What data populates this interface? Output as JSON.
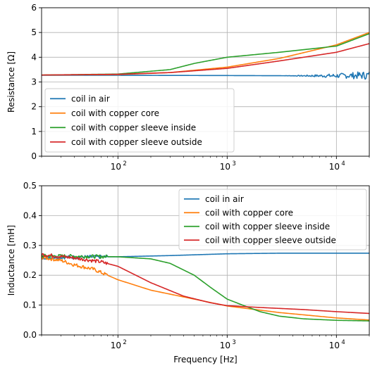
{
  "chart_data": [
    {
      "type": "line",
      "x_scale": "log",
      "xlim": [
        20,
        20000
      ],
      "ylim": [
        0,
        6
      ],
      "xlabel": "",
      "ylabel": "Resistance [Ω]",
      "x_ticks": [
        100,
        1000,
        10000
      ],
      "x_tick_labels": [
        "10",
        "10",
        "10"
      ],
      "x_tick_exponents": [
        "2",
        "3",
        "4"
      ],
      "y_ticks": [
        0,
        1,
        2,
        3,
        4,
        5,
        6
      ],
      "y_tick_labels": [
        "0",
        "1",
        "2",
        "3",
        "4",
        "5",
        "6"
      ],
      "grid": true,
      "legend_position": "lower-left",
      "series": [
        {
          "name": "coil in air",
          "color": "#1f77b4",
          "noisy": true,
          "x": [
            20,
            100,
            1000,
            5000,
            10000,
            20000
          ],
          "y": [
            3.27,
            3.27,
            3.26,
            3.25,
            3.25,
            3.27
          ]
        },
        {
          "name": "coil with copper core",
          "color": "#ff7f0e",
          "x": [
            20,
            100,
            300,
            1000,
            3000,
            10000,
            20000
          ],
          "y": [
            3.28,
            3.3,
            3.38,
            3.6,
            3.95,
            4.5,
            5.0
          ]
        },
        {
          "name": "coil with copper sleeve inside",
          "color": "#2ca02c",
          "x": [
            20,
            100,
            300,
            500,
            1000,
            3000,
            10000,
            20000
          ],
          "y": [
            3.28,
            3.32,
            3.5,
            3.75,
            4.0,
            4.2,
            4.45,
            4.95
          ]
        },
        {
          "name": "coil with copper sleeve outside",
          "color": "#d62728",
          "x": [
            20,
            100,
            300,
            1000,
            3000,
            10000,
            20000
          ],
          "y": [
            3.28,
            3.31,
            3.38,
            3.55,
            3.85,
            4.2,
            4.55
          ]
        }
      ]
    },
    {
      "type": "line",
      "x_scale": "log",
      "xlim": [
        20,
        20000
      ],
      "ylim": [
        0,
        0.5
      ],
      "xlabel": "Frequency [Hz]",
      "ylabel": "Inductance [mH]",
      "x_ticks": [
        100,
        1000,
        10000
      ],
      "x_tick_labels": [
        "10",
        "10",
        "10"
      ],
      "x_tick_exponents": [
        "2",
        "3",
        "4"
      ],
      "y_ticks": [
        0,
        0.1,
        0.2,
        0.3,
        0.4,
        0.5
      ],
      "y_tick_labels": [
        "0.0",
        "0.1",
        "0.2",
        "0.3",
        "0.4",
        "0.5"
      ],
      "grid": true,
      "legend_position": "top-right",
      "series": [
        {
          "name": "coil in air",
          "color": "#1f77b4",
          "x": [
            20,
            100,
            300,
            1000,
            3000,
            10000,
            20000
          ],
          "y": [
            0.26,
            0.262,
            0.266,
            0.272,
            0.274,
            0.274,
            0.274
          ]
        },
        {
          "name": "coil with copper core",
          "color": "#ff7f0e",
          "x": [
            20,
            30,
            40,
            60,
            100,
            200,
            500,
            1000,
            3000,
            10000,
            20000
          ],
          "y": [
            0.26,
            0.25,
            0.235,
            0.22,
            0.185,
            0.15,
            0.12,
            0.097,
            0.075,
            0.057,
            0.05
          ]
        },
        {
          "name": "coil with copper sleeve inside",
          "color": "#2ca02c",
          "x": [
            20,
            100,
            200,
            300,
            500,
            700,
            1000,
            1500,
            2000,
            3000,
            5000,
            10000,
            20000
          ],
          "y": [
            0.265,
            0.262,
            0.255,
            0.24,
            0.2,
            0.16,
            0.12,
            0.095,
            0.078,
            0.063,
            0.054,
            0.049,
            0.047
          ]
        },
        {
          "name": "coil with copper sleeve outside",
          "color": "#d62728",
          "x": [
            20,
            40,
            70,
            100,
            200,
            400,
            700,
            1000,
            2000,
            5000,
            10000,
            20000
          ],
          "y": [
            0.27,
            0.258,
            0.245,
            0.23,
            0.175,
            0.13,
            0.108,
            0.098,
            0.092,
            0.085,
            0.078,
            0.072
          ]
        }
      ]
    }
  ]
}
